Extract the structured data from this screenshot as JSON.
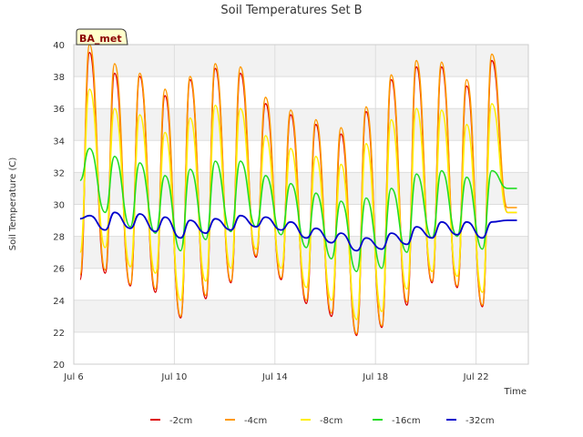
{
  "chart_data": {
    "type": "line",
    "title": "Soil Temperatures Set B",
    "xlabel": "Time",
    "ylabel": "Soil Temperature (C)",
    "annotation": "BA_met",
    "ylim": [
      20,
      40
    ],
    "yticks": [
      20,
      22,
      24,
      26,
      28,
      30,
      32,
      34,
      36,
      38,
      40
    ],
    "xlim": [
      "2024-07-06",
      "2024-07-24"
    ],
    "xticks": [
      {
        "date": "2024-07-06",
        "label": "Jul 6"
      },
      {
        "date": "2024-07-10",
        "label": "Jul 10"
      },
      {
        "date": "2024-07-14",
        "label": "Jul 14"
      },
      {
        "date": "2024-07-18",
        "label": "Jul 18"
      },
      {
        "date": "2024-07-22",
        "label": "Jul 22"
      }
    ],
    "grid": true,
    "legend_position": "bottom",
    "x": [
      "2024-07-06T06:00",
      "2024-07-06T15:00",
      "2024-07-07T06:00",
      "2024-07-07T15:00",
      "2024-07-08T06:00",
      "2024-07-08T15:00",
      "2024-07-09T06:00",
      "2024-07-09T15:00",
      "2024-07-10T06:00",
      "2024-07-10T15:00",
      "2024-07-11T06:00",
      "2024-07-11T15:00",
      "2024-07-12T06:00",
      "2024-07-12T15:00",
      "2024-07-13T06:00",
      "2024-07-13T15:00",
      "2024-07-14T06:00",
      "2024-07-14T15:00",
      "2024-07-15T06:00",
      "2024-07-15T15:00",
      "2024-07-16T06:00",
      "2024-07-16T15:00",
      "2024-07-17T06:00",
      "2024-07-17T15:00",
      "2024-07-18T06:00",
      "2024-07-18T15:00",
      "2024-07-19T06:00",
      "2024-07-19T15:00",
      "2024-07-20T06:00",
      "2024-07-20T15:00",
      "2024-07-21T06:00",
      "2024-07-21T15:00",
      "2024-07-22T06:00",
      "2024-07-22T15:00",
      "2024-07-23T06:00",
      "2024-07-23T15:00"
    ],
    "series": [
      {
        "name": "-2cm",
        "color": "#dd0000",
        "values": [
          25.3,
          39.5,
          25.7,
          38.2,
          24.9,
          38.0,
          24.5,
          36.8,
          22.9,
          37.8,
          24.1,
          38.5,
          25.1,
          38.2,
          26.7,
          36.3,
          25.3,
          35.6,
          23.8,
          35.0,
          23.0,
          34.4,
          21.8,
          35.8,
          22.3,
          37.8,
          23.7,
          38.6,
          25.1,
          38.6,
          24.8,
          37.4,
          23.6,
          39.0,
          29.5,
          29.5
        ]
      },
      {
        "name": "-4cm",
        "color": "#ff9900",
        "values": [
          25.6,
          40.0,
          25.9,
          38.8,
          25.0,
          38.2,
          24.7,
          37.2,
          23.0,
          38.0,
          24.3,
          38.8,
          25.2,
          38.6,
          26.8,
          36.7,
          25.4,
          35.9,
          24.0,
          35.3,
          23.2,
          34.8,
          21.9,
          36.1,
          22.4,
          38.1,
          23.9,
          39.0,
          25.2,
          38.9,
          24.9,
          37.8,
          23.7,
          39.4,
          29.8,
          29.8
        ]
      },
      {
        "name": "-8cm",
        "color": "#ffee00",
        "values": [
          27.0,
          37.2,
          27.3,
          36.0,
          26.1,
          35.6,
          25.7,
          34.5,
          24.0,
          35.4,
          25.2,
          36.2,
          26.0,
          36.0,
          27.2,
          34.3,
          26.0,
          33.5,
          24.8,
          33.0,
          24.0,
          32.5,
          22.8,
          33.8,
          23.3,
          35.3,
          24.7,
          36.0,
          25.8,
          35.9,
          25.5,
          35.0,
          24.5,
          36.3,
          29.5,
          29.5
        ]
      },
      {
        "name": "-16cm",
        "color": "#22dd22",
        "values": [
          31.5,
          33.5,
          29.5,
          33.0,
          28.6,
          32.6,
          28.2,
          31.8,
          27.1,
          32.2,
          27.8,
          32.7,
          28.3,
          32.7,
          28.6,
          31.8,
          28.1,
          31.3,
          27.3,
          30.7,
          26.6,
          30.2,
          25.8,
          30.4,
          26.0,
          31.0,
          27.0,
          31.9,
          27.9,
          32.1,
          28.0,
          31.7,
          27.2,
          32.1,
          31.0,
          31.0
        ]
      },
      {
        "name": "-32cm",
        "color": "#0000cc",
        "values": [
          29.1,
          29.3,
          28.4,
          29.5,
          28.5,
          29.4,
          28.3,
          29.2,
          27.9,
          29.0,
          28.2,
          29.1,
          28.4,
          29.3,
          28.6,
          29.2,
          28.4,
          28.9,
          27.9,
          28.5,
          27.6,
          28.2,
          27.1,
          27.9,
          27.2,
          28.2,
          27.5,
          28.6,
          27.9,
          28.9,
          28.1,
          28.9,
          27.9,
          28.9,
          29.0,
          29.0
        ]
      }
    ]
  }
}
